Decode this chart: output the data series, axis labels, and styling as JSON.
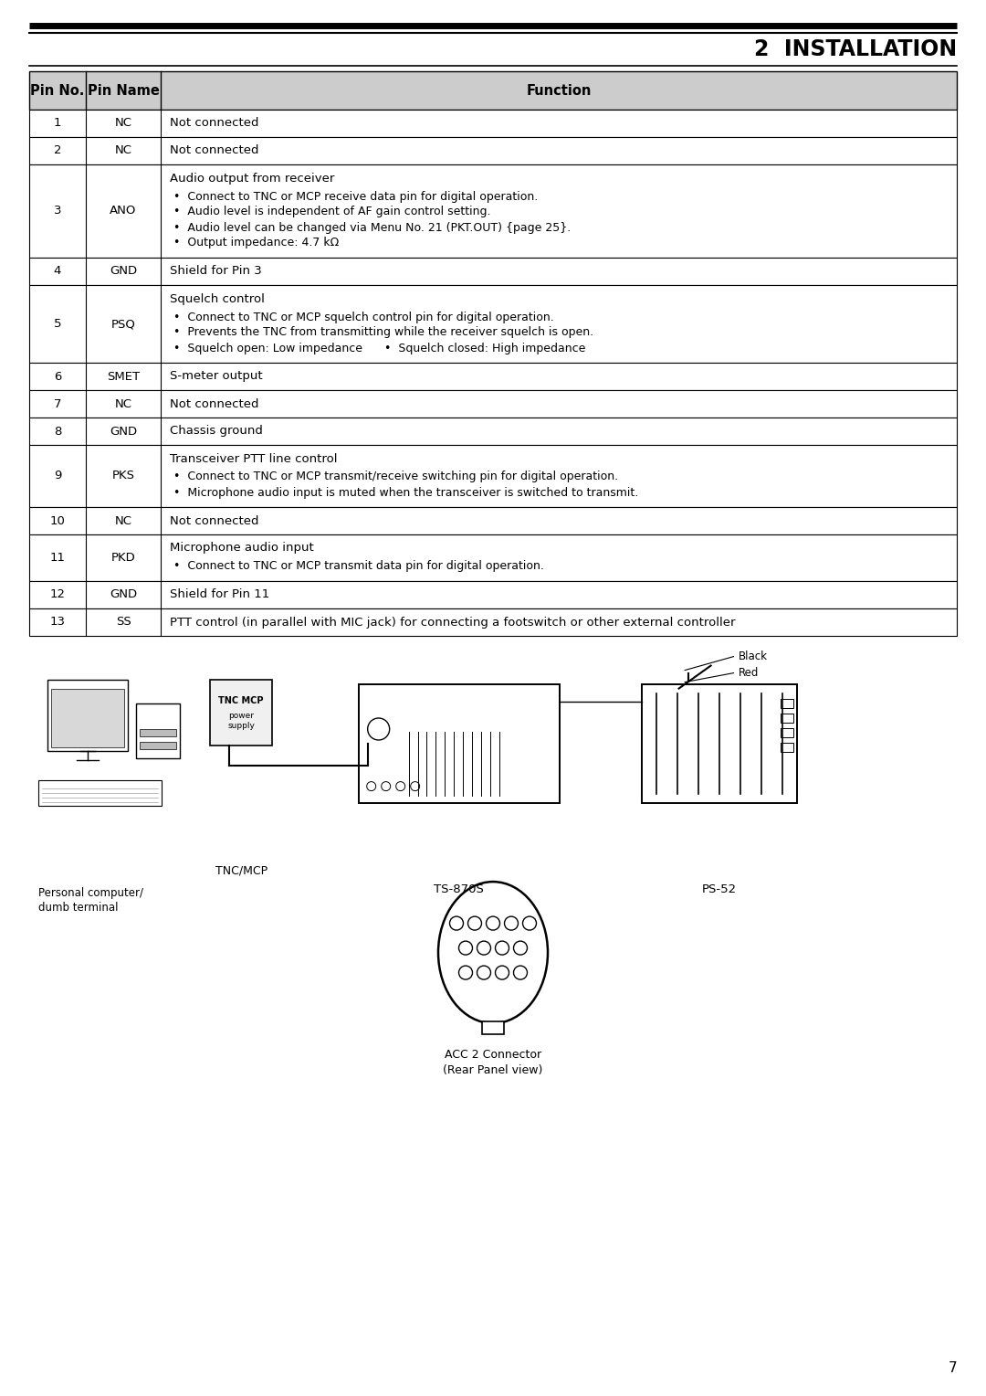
{
  "page_bg": "#ffffff",
  "title": "2  INSTALLATION",
  "page_number": "7",
  "rows": [
    {
      "pin": "1",
      "name": "NC",
      "func": "Not connected",
      "bullets": []
    },
    {
      "pin": "2",
      "name": "NC",
      "func": "Not connected",
      "bullets": []
    },
    {
      "pin": "3",
      "name": "ANO",
      "func": "Audio output from receiver",
      "bullets": [
        "Connect to TNC or MCP receive data pin for digital operation.",
        "Audio level is independent of AF gain control setting.",
        "Audio level can be changed via Menu No. 21 (PKT.OUT) {page 25}.",
        "Output impedance: 4.7 kΩ"
      ]
    },
    {
      "pin": "4",
      "name": "GND",
      "func": "Shield for Pin 3",
      "bullets": []
    },
    {
      "pin": "5",
      "name": "PSQ",
      "func": "Squelch control",
      "bullets": [
        "Connect to TNC or MCP squelch control pin for digital operation.",
        "Prevents the TNC from transmitting while the receiver squelch is open.",
        "Squelch open: Low impedance      •  Squelch closed: High impedance"
      ]
    },
    {
      "pin": "6",
      "name": "SMET",
      "func": "S-meter output",
      "bullets": []
    },
    {
      "pin": "7",
      "name": "NC",
      "func": "Not connected",
      "bullets": []
    },
    {
      "pin": "8",
      "name": "GND",
      "func": "Chassis ground",
      "bullets": []
    },
    {
      "pin": "9",
      "name": "PKS",
      "func": "Transceiver PTT line control",
      "bullets": [
        "Connect to TNC or MCP transmit/receive switching pin for digital operation.",
        "Microphone audio input is muted when the transceiver is switched to transmit."
      ]
    },
    {
      "pin": "10",
      "name": "NC",
      "func": "Not connected",
      "bullets": []
    },
    {
      "pin": "11",
      "name": "PKD",
      "func": "Microphone audio input",
      "bullets": [
        "Connect to TNC or MCP transmit data pin for digital operation."
      ]
    },
    {
      "pin": "12",
      "name": "GND",
      "func": "Shield for Pin 11",
      "bullets": []
    },
    {
      "pin": "13",
      "name": "SS",
      "func": "PTT control (in parallel with MIC jack) for connecting a footswitch or other external controller",
      "bullets": []
    }
  ]
}
